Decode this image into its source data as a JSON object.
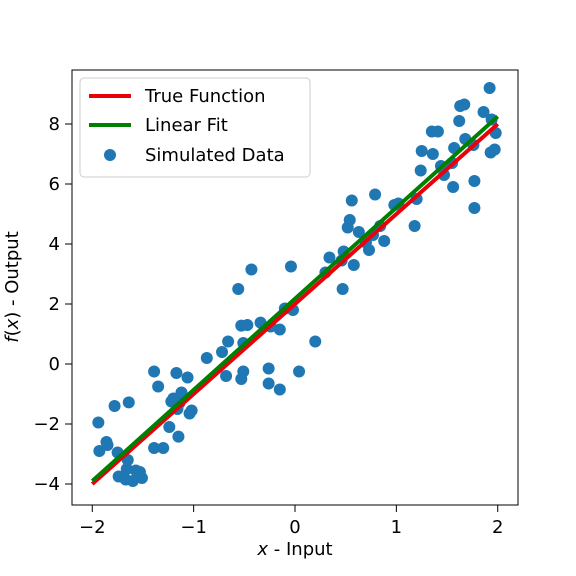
{
  "chart_data": {
    "type": "scatter",
    "xlabel_var": "x",
    "xlabel_rest": " - Input",
    "ylabel_func": "f",
    "ylabel_open": "(",
    "ylabel_var": "x",
    "ylabel_close": ")",
    "ylabel_rest": " - Output",
    "xlim": [
      -2.2,
      2.2
    ],
    "ylim": [
      -4.7,
      9.8
    ],
    "xticks": [
      -2,
      -1,
      0,
      1,
      2
    ],
    "xtick_labels": [
      "−2",
      "−1",
      "0",
      "1",
      "2"
    ],
    "yticks": [
      -4,
      -2,
      0,
      2,
      4,
      6,
      8
    ],
    "ytick_labels": [
      "−4",
      "−2",
      "0",
      "2",
      "4",
      "6",
      "8"
    ],
    "grid": false,
    "legend_position": "top-left",
    "series": [
      {
        "name": "True Function",
        "kind": "line",
        "color": "#e8000b",
        "x": [
          -2,
          2
        ],
        "y": [
          -4.0,
          8.0
        ]
      },
      {
        "name": "Linear Fit",
        "kind": "line",
        "color": "#008000",
        "x": [
          -2,
          2
        ],
        "y": [
          -3.9,
          8.25
        ]
      },
      {
        "name": "Simulated Data",
        "kind": "scatter",
        "color": "#1f77b4",
        "points": [
          [
            -1.94,
            -1.95
          ],
          [
            -1.93,
            -2.9
          ],
          [
            -1.86,
            -2.6
          ],
          [
            -1.85,
            -2.7
          ],
          [
            -1.78,
            -1.4
          ],
          [
            -1.75,
            -2.95
          ],
          [
            -1.74,
            -3.75
          ],
          [
            -1.7,
            -3.75
          ],
          [
            -1.67,
            -3.85
          ],
          [
            -1.66,
            -3.5
          ],
          [
            -1.65,
            -3.2
          ],
          [
            -1.64,
            -1.28
          ],
          [
            -1.6,
            -3.9
          ],
          [
            -1.57,
            -3.55
          ],
          [
            -1.53,
            -3.6
          ],
          [
            -1.51,
            -3.8
          ],
          [
            -1.39,
            -0.25
          ],
          [
            -1.39,
            -2.8
          ],
          [
            -1.35,
            -0.75
          ],
          [
            -1.3,
            -2.8
          ],
          [
            -1.24,
            -2.1
          ],
          [
            -1.22,
            -1.25
          ],
          [
            -1.2,
            -1.15
          ],
          [
            -1.17,
            -0.3
          ],
          [
            -1.16,
            -1.5
          ],
          [
            -1.15,
            -2.42
          ],
          [
            -1.14,
            -1.3
          ],
          [
            -1.12,
            -0.95
          ],
          [
            -1.06,
            -0.45
          ],
          [
            -1.04,
            -1.65
          ],
          [
            -1.02,
            -1.55
          ],
          [
            -0.87,
            0.2
          ],
          [
            -0.72,
            0.4
          ],
          [
            -0.68,
            -0.4
          ],
          [
            -0.66,
            0.75
          ],
          [
            -0.56,
            2.5
          ],
          [
            -0.53,
            -0.5
          ],
          [
            -0.53,
            1.28
          ],
          [
            -0.51,
            0.7
          ],
          [
            -0.51,
            -0.25
          ],
          [
            -0.47,
            1.3
          ],
          [
            -0.43,
            3.15
          ],
          [
            -0.34,
            1.38
          ],
          [
            -0.26,
            -0.15
          ],
          [
            -0.26,
            -0.65
          ],
          [
            -0.24,
            1.25
          ],
          [
            -0.15,
            -0.85
          ],
          [
            -0.15,
            1.15
          ],
          [
            -0.1,
            1.85
          ],
          [
            -0.04,
            3.25
          ],
          [
            -0.02,
            1.8
          ],
          [
            0.04,
            -0.25
          ],
          [
            0.2,
            0.75
          ],
          [
            0.3,
            3.05
          ],
          [
            0.34,
            3.55
          ],
          [
            0.46,
            3.45
          ],
          [
            0.47,
            2.5
          ],
          [
            0.48,
            3.75
          ],
          [
            0.52,
            4.55
          ],
          [
            0.54,
            4.8
          ],
          [
            0.56,
            5.45
          ],
          [
            0.58,
            3.3
          ],
          [
            0.63,
            4.4
          ],
          [
            0.7,
            4.05
          ],
          [
            0.73,
            3.8
          ],
          [
            0.77,
            4.3
          ],
          [
            0.79,
            5.65
          ],
          [
            0.84,
            4.6
          ],
          [
            0.88,
            4.1
          ],
          [
            0.98,
            5.3
          ],
          [
            1.02,
            5.35
          ],
          [
            1.18,
            4.6
          ],
          [
            1.2,
            5.5
          ],
          [
            1.24,
            6.45
          ],
          [
            1.25,
            7.1
          ],
          [
            1.35,
            7.75
          ],
          [
            1.36,
            7.0
          ],
          [
            1.41,
            7.75
          ],
          [
            1.44,
            6.6
          ],
          [
            1.47,
            6.3
          ],
          [
            1.55,
            6.7
          ],
          [
            1.56,
            5.9
          ],
          [
            1.57,
            7.2
          ],
          [
            1.62,
            8.1
          ],
          [
            1.63,
            8.6
          ],
          [
            1.67,
            8.65
          ],
          [
            1.68,
            7.5
          ],
          [
            1.76,
            7.3
          ],
          [
            1.77,
            6.1
          ],
          [
            1.77,
            5.2
          ],
          [
            1.86,
            8.4
          ],
          [
            1.92,
            9.2
          ],
          [
            1.93,
            7.05
          ],
          [
            1.94,
            8.15
          ],
          [
            1.97,
            7.15
          ],
          [
            1.98,
            7.7
          ]
        ]
      }
    ]
  }
}
